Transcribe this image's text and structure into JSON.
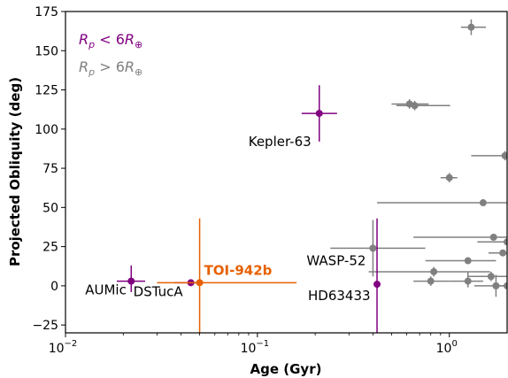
{
  "chart_data": {
    "type": "scatter",
    "xlabel": "Age (Gyr)",
    "ylabel": "Projected Obliquity (deg)",
    "xscale": "log",
    "xlim": [
      0.01,
      2.0
    ],
    "ylim": [
      -30,
      175
    ],
    "x_ticks": [
      {
        "value": 0.01,
        "base": "10",
        "exp": "−2"
      },
      {
        "value": 0.1,
        "base": "10",
        "exp": "−1"
      },
      {
        "value": 1,
        "base": "10",
        "exp": "0"
      }
    ],
    "y_ticks": [
      -25,
      0,
      25,
      50,
      75,
      100,
      125,
      150,
      175
    ],
    "grid": false,
    "legend_position": "top-left",
    "legend": [
      {
        "label": "R_p < 6R_⊕",
        "color": "#800080"
      },
      {
        "label": "R_p > 6R_⊕",
        "color": "#808080"
      }
    ],
    "series": [
      {
        "name": "Rp < 6R⊕",
        "color": "#800080",
        "points": [
          {
            "x": 0.022,
            "y": 3,
            "xerr": [
              0.0035,
              0.004
            ],
            "yerr": [
              7,
              10
            ],
            "label": "AUMic"
          },
          {
            "x": 0.045,
            "y": 2,
            "xerr": [
              0.008,
              0.004
            ],
            "yerr": [
              2,
              2
            ],
            "label": "DSTucA"
          },
          {
            "x": 0.21,
            "y": 110,
            "xerr": [
              0.04,
              0.05
            ],
            "yerr": [
              18,
              18
            ],
            "label": "Kepler-63"
          },
          {
            "x": 0.42,
            "y": 1,
            "xerr": [
              0,
              0
            ],
            "yerr": [
              43,
              42
            ],
            "label": "HD63433"
          }
        ]
      },
      {
        "name": "Rp > 6R⊕",
        "color": "#808080",
        "points": [
          {
            "x": 1.3,
            "y": 165,
            "xerr": [
              0.15,
              0.25
            ],
            "yerr": [
              5,
              5
            ]
          },
          {
            "x": 0.62,
            "y": 116,
            "xerr": [
              0.12,
              0.16
            ],
            "yerr": [
              3,
              3
            ]
          },
          {
            "x": 0.66,
            "y": 115,
            "xerr": [
              0.13,
              0.35
            ],
            "yerr": [
              3,
              3
            ]
          },
          {
            "x": 1.95,
            "y": 83,
            "xerr": [
              0.65,
              0.3
            ],
            "yerr": [
              3,
              3
            ]
          },
          {
            "x": 1.0,
            "y": 69,
            "xerr": [
              0.1,
              0.1
            ],
            "yerr": [
              3,
              3
            ]
          },
          {
            "x": 1.5,
            "y": 53,
            "xerr": [
              1.08,
              0.6
            ],
            "yerr": [
              0,
              0
            ]
          },
          {
            "x": 1.7,
            "y": 31,
            "xerr": [
              1.05,
              0.5
            ],
            "yerr": [
              0,
              0
            ]
          },
          {
            "x": 2.0,
            "y": 28,
            "xerr": [
              0.6,
              0.3
            ],
            "yerr": [
              0,
              0
            ]
          },
          {
            "x": 0.4,
            "y": 24,
            "xerr": [
              0.16,
              0.35
            ],
            "yerr": [
              18,
              18
            ],
            "label": "WASP-52"
          },
          {
            "x": 1.9,
            "y": 21,
            "xerr": [
              0.3,
              0.3
            ],
            "yerr": [
              0,
              0
            ]
          },
          {
            "x": 1.25,
            "y": 16,
            "xerr": [
              0.5,
              0.5
            ],
            "yerr": [
              0,
              0
            ]
          },
          {
            "x": 0.83,
            "y": 9,
            "xerr": [
              0.45,
              0.8
            ],
            "yerr": [
              3,
              3
            ]
          },
          {
            "x": 1.65,
            "y": 6,
            "xerr": [
              0.4,
              0.4
            ],
            "yerr": [
              3,
              3
            ]
          },
          {
            "x": 0.8,
            "y": 3,
            "xerr": [
              0.15,
              0.2
            ],
            "yerr": [
              3,
              3
            ]
          },
          {
            "x": 1.25,
            "y": 3,
            "xerr": [
              0.25,
              0.25
            ],
            "yerr": [
              4,
              6
            ]
          },
          {
            "x": 1.75,
            "y": 0,
            "xerr": [
              0.4,
              0.3
            ],
            "yerr": [
              7,
              7
            ]
          },
          {
            "x": 2.0,
            "y": 0,
            "xerr": [
              0.3,
              0.3
            ],
            "yerr": [
              0,
              0
            ]
          }
        ]
      },
      {
        "name": "TOI-942b",
        "color": "#e66100",
        "points": [
          {
            "x": 0.05,
            "y": 2,
            "xerr": [
              0.02,
              0.11
            ],
            "yerr": [
              33,
              41
            ],
            "label": "TOI-942b"
          }
        ]
      }
    ]
  }
}
